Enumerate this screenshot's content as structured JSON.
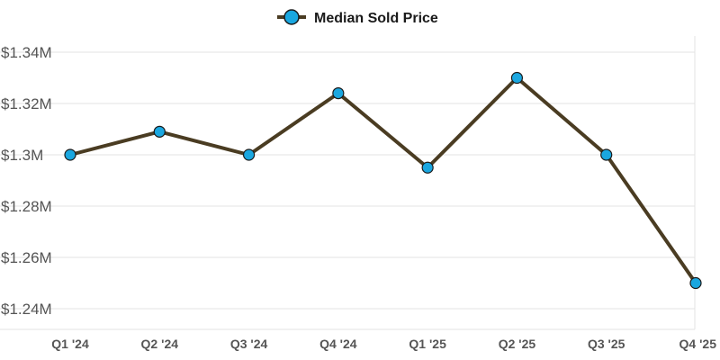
{
  "chart_data": {
    "type": "line",
    "categories": [
      "Q1 '24",
      "Q2 '24",
      "Q3 '24",
      "Q4 '24",
      "Q1 '25",
      "Q2 '25",
      "Q3 '25",
      "Q4 '25"
    ],
    "series": [
      {
        "name": "Median Sold Price",
        "values": [
          1300000,
          1309000,
          1300000,
          1324000,
          1295000,
          1330000,
          1300000,
          1250000
        ]
      }
    ],
    "y_ticks": [
      1240000,
      1260000,
      1280000,
      1300000,
      1320000,
      1340000
    ],
    "y_tick_labels": [
      "$1.24M",
      "$1.26M",
      "$1.28M",
      "$1.3M",
      "$1.32M",
      "$1.34M"
    ],
    "ylim": [
      1240000,
      1340000
    ],
    "grid": true,
    "legend": "top-center",
    "colors": {
      "line": "#4a3c22",
      "marker_fill": "#1aa7e0",
      "marker_stroke": "#1a1a1a",
      "grid": "#e3e3e3",
      "tick_text": "#555555"
    }
  }
}
